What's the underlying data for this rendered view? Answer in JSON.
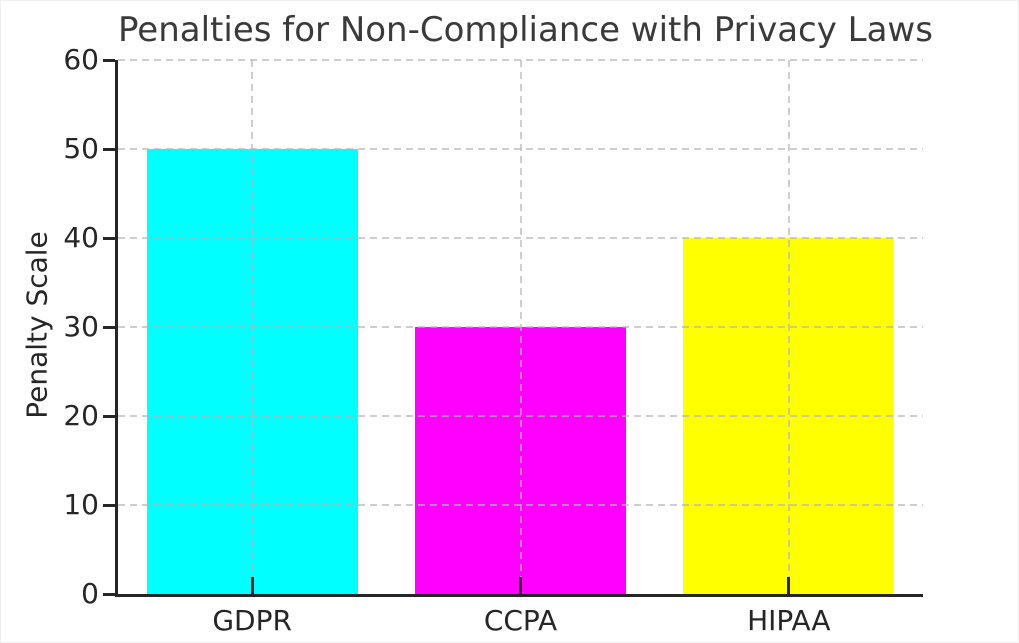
{
  "chart_data": {
    "type": "bar",
    "title": "Penalties for Non-Compliance with Privacy Laws",
    "xlabel": "",
    "ylabel": "Penalty Scale",
    "categories": [
      "GDPR",
      "CCPA",
      "HIPAA"
    ],
    "values": [
      50,
      30,
      40
    ],
    "bar_colors": [
      "#00ffff",
      "#ff00ff",
      "#ffff00"
    ],
    "ylim": [
      0,
      60
    ],
    "yticks": [
      0,
      10,
      20,
      30,
      40,
      50,
      60
    ],
    "bar_width_fraction": 0.8,
    "grid": {
      "horizontal": true,
      "vertical": true,
      "style": "dashed",
      "drawn_above_bars": true
    },
    "legend": "none",
    "spines": [
      "left",
      "bottom"
    ],
    "x_tick_direction": "in",
    "y_tick_direction": "out"
  },
  "colors": {
    "background": "#ffffff",
    "grid": "#b4b4b4",
    "axis": "#262626",
    "title_text": "#3a3a3a",
    "tick_text": "#262626"
  }
}
